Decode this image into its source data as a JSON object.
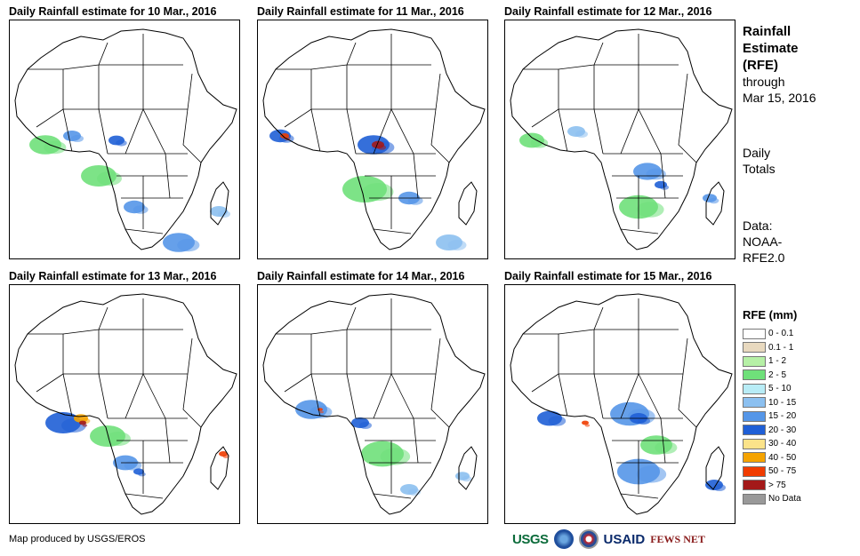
{
  "panels": [
    {
      "title": "Daily Rainfall estimate for 10 Mar., 2016"
    },
    {
      "title": "Daily Rainfall estimate for 11 Mar., 2016"
    },
    {
      "title": "Daily Rainfall estimate for 12 Mar., 2016"
    },
    {
      "title": "Daily Rainfall estimate for 13 Mar., 2016"
    },
    {
      "title": "Daily Rainfall estimate for 14 Mar., 2016"
    },
    {
      "title": "Daily Rainfall estimate for 15 Mar., 2016"
    }
  ],
  "side": {
    "title_line1": "Rainfall",
    "title_line2": "Estimate",
    "title_line3": "(RFE)",
    "through_line1": "through",
    "through_line2": "Mar 15, 2016",
    "totals_line1": "Daily",
    "totals_line2": "Totals",
    "data_line1": "Data:",
    "data_line2": "NOAA-",
    "data_line3": "RFE2.0"
  },
  "legend": {
    "title": "RFE (mm)",
    "items": [
      {
        "label": "0 - 0.1",
        "color": "#ffffff"
      },
      {
        "label": "0.1 - 1",
        "color": "#e8d9bf"
      },
      {
        "label": "1 - 2",
        "color": "#b6f0a6"
      },
      {
        "label": "2 - 5",
        "color": "#6fe07a"
      },
      {
        "label": "5 - 10",
        "color": "#b8ecf6"
      },
      {
        "label": "10 - 15",
        "color": "#8cc0f0"
      },
      {
        "label": "15 - 20",
        "color": "#5596e8"
      },
      {
        "label": "20 - 30",
        "color": "#1f5fd6"
      },
      {
        "label": "30 - 40",
        "color": "#fbe38a"
      },
      {
        "label": "40 - 50",
        "color": "#f5a300"
      },
      {
        "label": "50 - 75",
        "color": "#f03c00"
      },
      {
        "label": "> 75",
        "color": "#a31919"
      },
      {
        "label": "No Data",
        "color": "#999999"
      }
    ]
  },
  "credit": "Map produced by USGS/EROS",
  "logos": {
    "usgs": "USGS",
    "usaid": "USAID",
    "fews": "FEWS NET"
  }
}
